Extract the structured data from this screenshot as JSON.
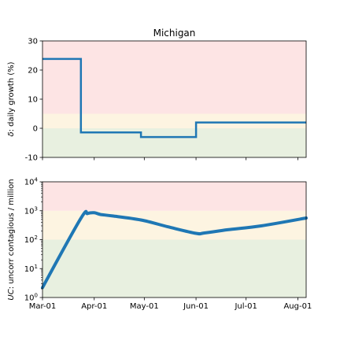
{
  "chart_data": [
    {
      "type": "line",
      "title": "Michigan",
      "ylabel_sym": "δ",
      "ylabel_rest": ": daily growth (%)",
      "xlim": [
        "2020-03-01",
        "2020-08-06"
      ],
      "ylim": [
        -10,
        30
      ],
      "yticks": [
        -10,
        0,
        10,
        20,
        30
      ],
      "bands": [
        {
          "from": -10,
          "to": 0,
          "color": "#e8f0e0"
        },
        {
          "from": 0,
          "to": 5,
          "color": "#fdf4e1"
        },
        {
          "from": 5,
          "to": 30,
          "color": "#fde4e4"
        }
      ],
      "color": "#1f77b4",
      "series": [
        {
          "x": [
            "2020-03-01",
            "2020-03-24",
            "2020-03-24",
            "2020-04-29",
            "2020-04-29",
            "2020-06-01",
            "2020-06-01",
            "2020-08-06"
          ],
          "y": [
            23.8,
            23.8,
            -1.4,
            -1.4,
            -3.0,
            -3.0,
            2.0,
            2.0
          ]
        }
      ]
    },
    {
      "type": "line",
      "ylabel_sym": "UC",
      "ylabel_rest": ": uncorr contagious / million",
      "yscale": "log",
      "ylim": [
        1,
        10000
      ],
      "yticks": [
        {
          "value": 1,
          "base": "10",
          "exp": "0"
        },
        {
          "value": 10,
          "base": "10",
          "exp": "1"
        },
        {
          "value": 100,
          "base": "10",
          "exp": "2"
        },
        {
          "value": 1000,
          "base": "10",
          "exp": "3"
        },
        {
          "value": 10000,
          "base": "10",
          "exp": "4"
        }
      ],
      "xticks": [
        "Mar-01",
        "Apr-01",
        "May-01",
        "Jun-01",
        "Jul-01",
        "Aug-01"
      ],
      "xtick_dates": [
        "2020-03-01",
        "2020-04-01",
        "2020-05-01",
        "2020-06-01",
        "2020-07-01",
        "2020-08-01"
      ],
      "bands": [
        {
          "from": 1,
          "to": 100,
          "color": "#e8f0e0"
        },
        {
          "from": 100,
          "to": 1000,
          "color": "#fdf4e1"
        },
        {
          "from": 1000,
          "to": 10000,
          "color": "#fde4e4"
        }
      ],
      "color": "#1f77b4",
      "series": [
        {
          "x": [
            "2020-03-01",
            "2020-03-24",
            "2020-03-28",
            "2020-04-01",
            "2020-04-05",
            "2020-04-12",
            "2020-04-29",
            "2020-05-15",
            "2020-06-01",
            "2020-06-06",
            "2020-06-20",
            "2020-07-10",
            "2020-08-06"
          ],
          "y": [
            2.2,
            550,
            800,
            850,
            740,
            660,
            480,
            280,
            165,
            170,
            220,
            300,
            560
          ]
        }
      ]
    }
  ]
}
